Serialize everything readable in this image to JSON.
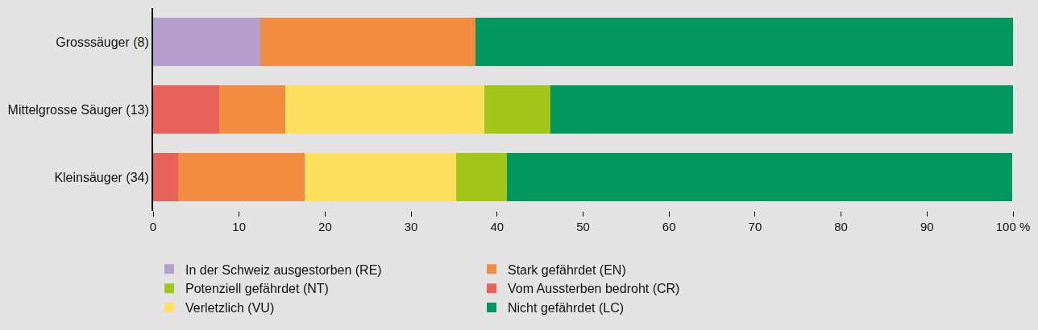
{
  "chart_data": {
    "type": "bar",
    "orientation": "horizontal",
    "stacked": true,
    "categories": [
      "Grosssäuger (8)",
      "Mittelgrosse Säuger (13)",
      "Kleinsäuger (34)"
    ],
    "series": [
      {
        "name": "In der Schweiz ausgestorben (RE)",
        "color": "#b59fcc",
        "values": [
          12.5,
          null,
          null
        ]
      },
      {
        "name": "Vom Aussterben bedroht (CR)",
        "color": "#e6625a",
        "values": [
          null,
          7.7,
          2.9
        ]
      },
      {
        "name": "Stark gefährdet (EN)",
        "color": "#f28c40",
        "values": [
          25,
          7.7,
          14.7
        ]
      },
      {
        "name": "Verletzlich (VU)",
        "color": "#ffdf5e",
        "values": [
          null,
          23.1,
          17.6
        ]
      },
      {
        "name": "Potenziell gefährdet (NT)",
        "color": "#a3c61b",
        "values": [
          null,
          7.7,
          5.9
        ]
      },
      {
        "name": "Nicht gefährdet (LC)",
        "color": "#00965e",
        "values": [
          62.5,
          53.8,
          58.8
        ]
      }
    ],
    "xlim": [
      0,
      100
    ],
    "xticks": [
      0,
      10,
      20,
      30,
      40,
      50,
      60,
      70,
      80,
      90,
      {
        "value": 100,
        "label": "100 %"
      }
    ],
    "grid": false,
    "legend": "bottom"
  }
}
